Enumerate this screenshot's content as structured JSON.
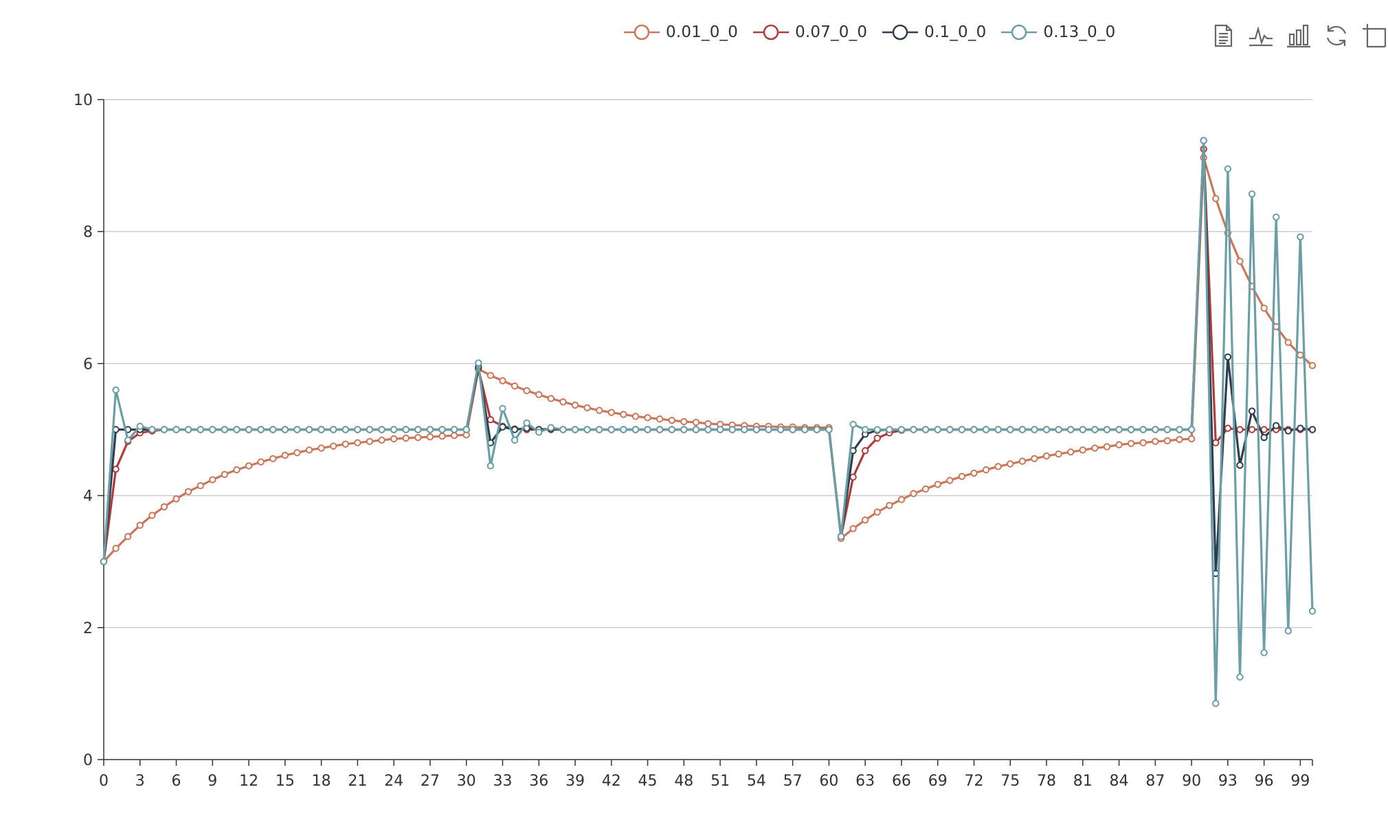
{
  "chart_data": {
    "type": "line",
    "title": "",
    "xlabel": "",
    "ylabel": "",
    "x": [
      0,
      1,
      2,
      3,
      4,
      5,
      6,
      7,
      8,
      9,
      10,
      11,
      12,
      13,
      14,
      15,
      16,
      17,
      18,
      19,
      20,
      21,
      22,
      23,
      24,
      25,
      26,
      27,
      28,
      29,
      30,
      31,
      32,
      33,
      34,
      35,
      36,
      37,
      38,
      39,
      40,
      41,
      42,
      43,
      44,
      45,
      46,
      47,
      48,
      49,
      50,
      51,
      52,
      53,
      54,
      55,
      56,
      57,
      58,
      59,
      60,
      61,
      62,
      63,
      64,
      65,
      66,
      67,
      68,
      69,
      70,
      71,
      72,
      73,
      74,
      75,
      76,
      77,
      78,
      79,
      80,
      81,
      82,
      83,
      84,
      85,
      86,
      87,
      88,
      89,
      90,
      91,
      92,
      93,
      94,
      95,
      96,
      97,
      98,
      99,
      100
    ],
    "xlim": [
      0,
      100
    ],
    "ylim": [
      0,
      10
    ],
    "x_ticks": [
      0,
      3,
      6,
      9,
      12,
      15,
      18,
      21,
      24,
      27,
      30,
      33,
      36,
      39,
      42,
      45,
      48,
      51,
      54,
      57,
      60,
      63,
      66,
      69,
      72,
      75,
      78,
      81,
      84,
      87,
      90,
      93,
      96,
      99
    ],
    "y_ticks": [
      0,
      2,
      4,
      6,
      8,
      10
    ],
    "grid": "horizontal",
    "legend_position": "top",
    "series": [
      {
        "name": "0.01_0_0",
        "color": "#c9775a",
        "values": [
          3.0,
          3.2,
          3.38,
          3.55,
          3.7,
          3.83,
          3.95,
          4.06,
          4.15,
          4.24,
          4.32,
          4.39,
          4.45,
          4.51,
          4.56,
          4.61,
          4.65,
          4.69,
          4.72,
          4.75,
          4.78,
          4.8,
          4.82,
          4.84,
          4.86,
          4.87,
          4.88,
          4.89,
          4.9,
          4.91,
          4.92,
          5.92,
          5.82,
          5.74,
          5.66,
          5.59,
          5.53,
          5.47,
          5.42,
          5.37,
          5.33,
          5.29,
          5.26,
          5.23,
          5.2,
          5.18,
          5.16,
          5.14,
          5.12,
          5.11,
          5.09,
          5.08,
          5.07,
          5.06,
          5.05,
          5.05,
          5.04,
          5.04,
          5.03,
          5.03,
          5.03,
          3.35,
          3.5,
          3.63,
          3.75,
          3.85,
          3.94,
          4.03,
          4.1,
          4.17,
          4.23,
          4.29,
          4.34,
          4.39,
          4.44,
          4.48,
          4.52,
          4.56,
          4.6,
          4.63,
          4.66,
          4.69,
          4.72,
          4.74,
          4.77,
          4.79,
          4.8,
          4.82,
          4.83,
          4.85,
          4.86,
          9.12,
          8.5,
          7.98,
          7.55,
          7.17,
          6.84,
          6.56,
          6.32,
          6.13,
          5.97
        ]
      },
      {
        "name": "0.07_0_0",
        "color": "#b03a3a",
        "values": [
          3.0,
          4.4,
          4.82,
          4.95,
          4.98,
          5.0,
          5.0,
          5.0,
          5.0,
          5.0,
          5.0,
          5.0,
          5.0,
          5.0,
          5.0,
          5.0,
          5.0,
          5.0,
          5.0,
          5.0,
          5.0,
          5.0,
          5.0,
          5.0,
          5.0,
          5.0,
          5.0,
          5.0,
          5.0,
          5.0,
          5.0,
          5.92,
          5.15,
          5.05,
          5.01,
          5.0,
          5.0,
          5.0,
          5.0,
          5.0,
          5.0,
          5.0,
          5.0,
          5.0,
          5.0,
          5.0,
          5.0,
          5.0,
          5.0,
          5.0,
          5.0,
          5.0,
          5.0,
          5.0,
          5.0,
          5.0,
          5.0,
          5.0,
          5.0,
          5.0,
          5.0,
          3.38,
          4.28,
          4.68,
          4.87,
          4.95,
          4.99,
          5.0,
          5.0,
          5.0,
          5.0,
          5.0,
          5.0,
          5.0,
          5.0,
          5.0,
          5.0,
          5.0,
          5.0,
          5.0,
          5.0,
          5.0,
          5.0,
          5.0,
          5.0,
          5.0,
          5.0,
          5.0,
          5.0,
          5.0,
          5.0,
          9.25,
          4.8,
          5.02,
          5.0,
          5.0,
          5.0,
          5.0,
          5.0,
          5.0,
          5.0
        ]
      },
      {
        "name": "0.1_0_0",
        "color": "#2e3e4f",
        "values": [
          3.0,
          5.0,
          5.0,
          5.0,
          5.0,
          5.0,
          5.0,
          5.0,
          5.0,
          5.0,
          5.0,
          5.0,
          5.0,
          5.0,
          5.0,
          5.0,
          5.0,
          5.0,
          5.0,
          5.0,
          5.0,
          5.0,
          5.0,
          5.0,
          5.0,
          5.0,
          5.0,
          5.0,
          5.0,
          5.0,
          5.0,
          5.95,
          4.8,
          5.04,
          5.0,
          5.02,
          5.0,
          5.01,
          5.0,
          5.0,
          5.0,
          5.0,
          5.0,
          5.0,
          5.0,
          5.0,
          5.0,
          5.0,
          5.0,
          5.0,
          5.0,
          5.0,
          5.0,
          5.0,
          5.0,
          5.0,
          5.0,
          5.0,
          5.0,
          5.0,
          5.0,
          3.38,
          4.68,
          4.93,
          4.99,
          5.0,
          5.0,
          5.0,
          5.0,
          5.0,
          5.0,
          5.0,
          5.0,
          5.0,
          5.0,
          5.0,
          5.0,
          5.0,
          5.0,
          5.0,
          5.0,
          5.0,
          5.0,
          5.0,
          5.0,
          5.0,
          5.0,
          5.0,
          5.0,
          5.0,
          5.0,
          9.38,
          2.82,
          6.1,
          4.46,
          5.28,
          4.88,
          5.06,
          4.98,
          5.02,
          5.0
        ]
      },
      {
        "name": "0.13_0_0",
        "color": "#6b9ea6",
        "values": [
          3.0,
          5.6,
          4.84,
          5.05,
          5.0,
          5.0,
          5.0,
          5.0,
          5.0,
          5.0,
          5.0,
          5.0,
          5.0,
          5.0,
          5.0,
          5.0,
          5.0,
          5.0,
          5.0,
          5.0,
          5.0,
          5.0,
          5.0,
          5.0,
          5.0,
          5.0,
          5.0,
          5.0,
          5.0,
          5.0,
          5.0,
          6.01,
          4.45,
          5.32,
          4.84,
          5.1,
          4.96,
          5.03,
          5.0,
          5.0,
          5.0,
          5.0,
          5.0,
          5.0,
          5.0,
          5.0,
          5.0,
          5.0,
          5.0,
          5.0,
          5.0,
          5.0,
          5.0,
          5.0,
          5.0,
          5.0,
          5.0,
          5.0,
          5.0,
          5.0,
          5.0,
          3.38,
          5.08,
          5.0,
          5.0,
          5.0,
          5.0,
          5.0,
          5.0,
          5.0,
          5.0,
          5.0,
          5.0,
          5.0,
          5.0,
          5.0,
          5.0,
          5.0,
          5.0,
          5.0,
          5.0,
          5.0,
          5.0,
          5.0,
          5.0,
          5.0,
          5.0,
          5.0,
          5.0,
          5.0,
          5.0,
          9.38,
          0.85,
          8.95,
          1.25,
          8.57,
          1.62,
          8.22,
          1.95,
          7.92,
          2.25
        ]
      }
    ]
  },
  "toolbox": {
    "icons": [
      "data-view-icon",
      "line-chart-icon",
      "bar-chart-icon",
      "restore-icon",
      "zoom-icon"
    ]
  }
}
